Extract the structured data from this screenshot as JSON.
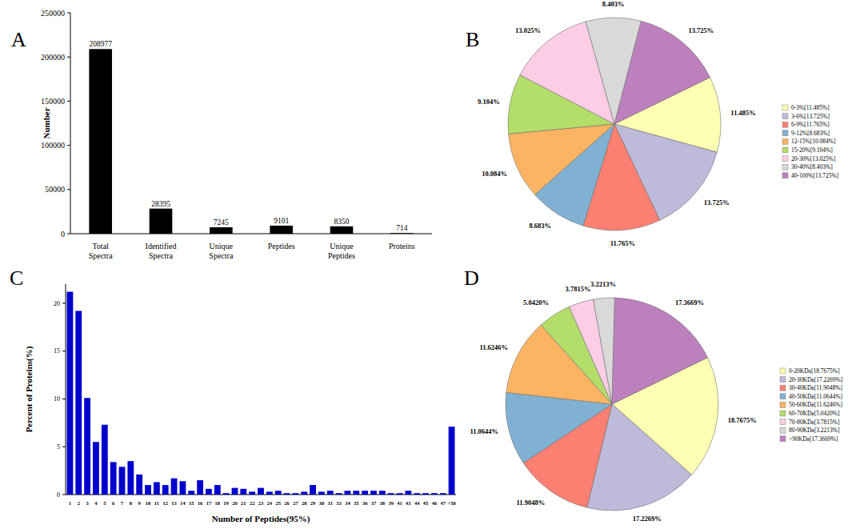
{
  "chart_data": [
    {
      "type": "bar",
      "title": "A",
      "y_label": "Number",
      "categories": [
        "Total Spectra",
        "Identified Spectra",
        "Unique Spectra",
        "Peptides",
        "Unique Peptides",
        "Proteins"
      ],
      "values": [
        208977,
        28395,
        7245,
        9101,
        8350,
        714
      ],
      "color": "#000000",
      "ylim": [
        0,
        250000
      ],
      "yticks": [
        0,
        50000,
        100000,
        150000,
        200000,
        250000
      ],
      "grid": false,
      "data_labels": true
    },
    {
      "type": "pie",
      "title": "B",
      "categories": [
        "0-3%[11.485%]",
        "3-6%[13.725%]",
        "6-9%[11.765%]",
        "9-12%[8.683%]",
        "12-15%[10.084%]",
        "15-20%[9.104%]",
        "20-30%[13.025%]",
        "30-40%[8.403%]",
        "40-100%[13.725%]"
      ],
      "values": [
        11.485,
        13.725,
        11.765,
        8.683,
        10.084,
        9.104,
        13.025,
        8.403,
        13.725
      ],
      "value_labels": [
        "11.485%",
        "13.725%",
        "11.765%",
        "8.683%",
        "10.084%",
        "9.104%",
        "13.025%",
        "8.403%",
        "13.725%"
      ],
      "colors": [
        "#ffffb3",
        "#bebada",
        "#fb8072",
        "#80b1d3",
        "#fdb462",
        "#b3de69",
        "#fccde5",
        "#d9d9d9",
        "#bc80bd"
      ],
      "data_labels": true,
      "legend": "right"
    },
    {
      "type": "bar",
      "title": "C",
      "x_label": "Number of Peptides(95%)",
      "y_label": "Percent of Proteins(%)",
      "categories": [
        "1",
        "2",
        "3",
        "4",
        "5",
        "6",
        "7",
        "8",
        "9",
        "10",
        "11",
        "12",
        "13",
        "14",
        "15",
        "16",
        "17",
        "18",
        "19",
        "20",
        "21",
        "22",
        "23",
        "24",
        "25",
        "26",
        "27",
        "28",
        "29",
        "30",
        "31",
        "33",
        "34",
        "35",
        "36",
        "37",
        "38",
        "39",
        "41",
        "43",
        "44",
        "45",
        "46",
        "47",
        ">50"
      ],
      "values": [
        21.2,
        19.2,
        10.1,
        5.5,
        7.3,
        3.4,
        2.9,
        3.5,
        2.1,
        1.0,
        1.3,
        1.0,
        1.7,
        1.4,
        0.4,
        1.5,
        0.6,
        1.0,
        0.15,
        0.7,
        0.6,
        0.3,
        0.7,
        0.3,
        0.4,
        0.15,
        0.15,
        0.3,
        1.0,
        0.3,
        0.4,
        0.15,
        0.4,
        0.4,
        0.4,
        0.4,
        0.4,
        0.15,
        0.15,
        0.4,
        0.15,
        0.15,
        0.15,
        0.15,
        7.1
      ],
      "color": "#0000cc",
      "ylim": [
        0,
        22
      ],
      "yticks": [
        0,
        5,
        10,
        15,
        20
      ],
      "grid": false
    },
    {
      "type": "pie",
      "title": "D",
      "categories": [
        "0-20KDa[18.7675%]",
        "20-30KDa[17.2269%]",
        "30-40KDa[11.9048%]",
        "40-50KDa[11.0644%]",
        "50-60KDa[11.6246%]",
        "60-70KDa[5.0420%]",
        "70-80KDa[3.7815%]",
        "80-90KDa[3.2213%]",
        ">90KDa[17.3669%]"
      ],
      "values": [
        18.7675,
        17.2269,
        11.9048,
        11.0644,
        11.6246,
        5.042,
        3.7815,
        3.2213,
        17.3669
      ],
      "value_labels": [
        "18.7675%",
        "17.2269%",
        "11.9048%",
        "11.0644%",
        "11.6246%",
        "5.0420%",
        "3.7815%",
        "3.2213%",
        "17.3669%"
      ],
      "colors": [
        "#ffffb3",
        "#bebada",
        "#fb8072",
        "#80b1d3",
        "#fdb462",
        "#b3de69",
        "#fccde5",
        "#d9d9d9",
        "#bc80bd"
      ],
      "data_labels": true,
      "legend": "right"
    }
  ]
}
